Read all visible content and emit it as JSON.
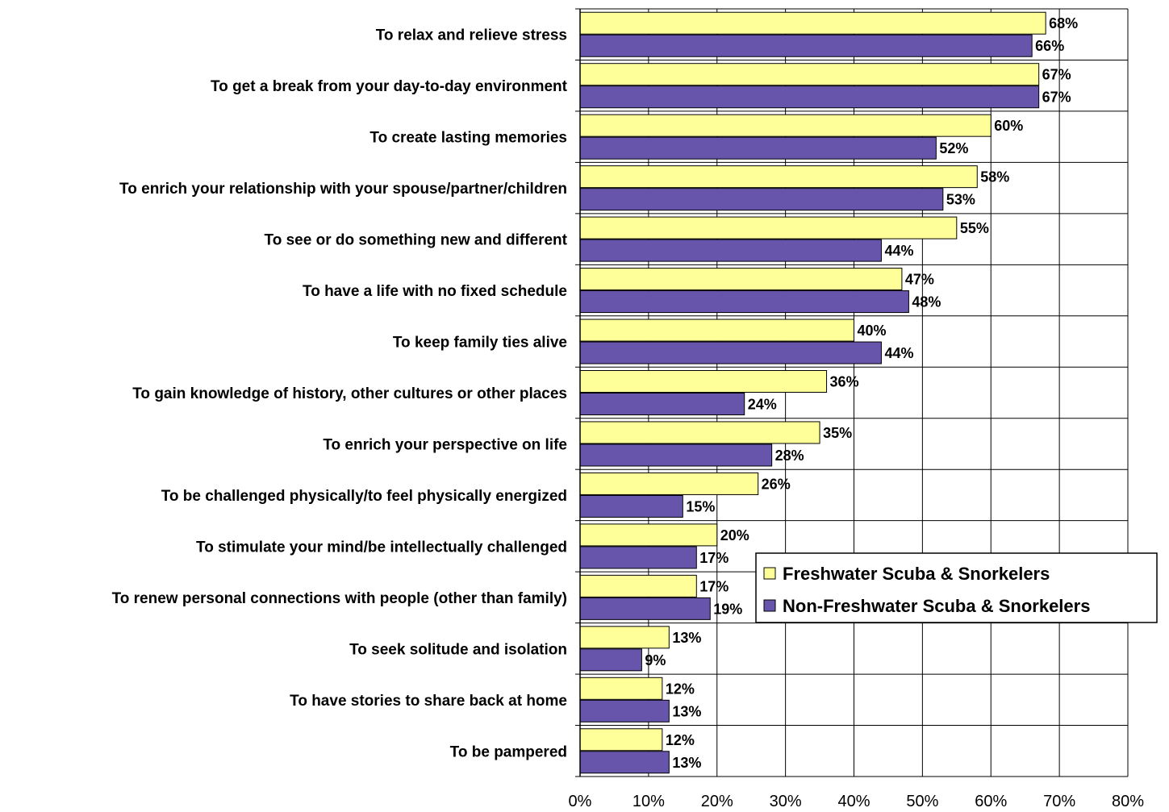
{
  "chart_data": {
    "type": "bar",
    "orientation": "horizontal",
    "categories": [
      "To relax and relieve stress",
      "To get a break from your day-to-day environment",
      "To create lasting memories",
      "To enrich your relationship with your spouse/partner/children",
      "To see or do something new and different",
      "To have a life with no fixed schedule",
      "To keep family ties alive",
      "To gain knowledge of history, other cultures or other places",
      "To enrich your perspective on life",
      "To be challenged physically/to feel physically energized",
      "To stimulate your mind/be intellectually challenged",
      "To renew personal connections with people (other than family)",
      "To seek solitude and isolation",
      "To have stories to share back at home",
      "To be pampered"
    ],
    "series": [
      {
        "name": "Freshwater Scuba & Snorkelers",
        "color": "#ffff99",
        "values": [
          68,
          67,
          60,
          58,
          55,
          47,
          40,
          36,
          35,
          26,
          20,
          17,
          13,
          12,
          12
        ]
      },
      {
        "name": "Non-Freshwater Scuba & Snorkelers",
        "color": "#6655aa",
        "values": [
          66,
          67,
          52,
          53,
          44,
          48,
          44,
          24,
          28,
          15,
          17,
          19,
          9,
          13,
          13
        ]
      }
    ],
    "value_suffix": "%",
    "xlim": [
      0,
      80
    ],
    "xticks": [
      0,
      10,
      20,
      30,
      40,
      50,
      60,
      70,
      80
    ],
    "xtick_labels": [
      "0%",
      "10%",
      "20%",
      "30%",
      "40%",
      "50%",
      "60%",
      "70%",
      "80%"
    ],
    "grid": true,
    "legend": "right-middle"
  }
}
